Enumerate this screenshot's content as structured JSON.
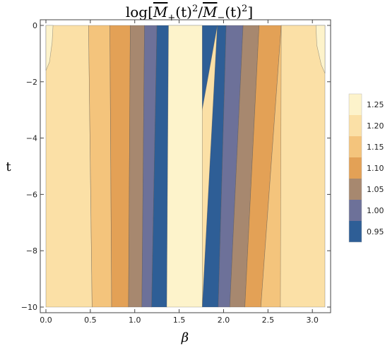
{
  "chart_data": {
    "type": "heatmap",
    "title": {
      "prefix": "log[",
      "m1": "M",
      "sub1": "+",
      "mid1": "(t)",
      "sup1": "2",
      "slash": "/",
      "m2": "M",
      "sub2": "−",
      "mid2": "(t)",
      "sup2": "2",
      "suffix": "]"
    },
    "xlabel": "β",
    "ylabel": "t",
    "xlim": [
      0,
      3.1416
    ],
    "ylim": [
      -10,
      0
    ],
    "x_ticks": [
      0.0,
      0.5,
      1.0,
      1.5,
      2.0,
      2.5,
      3.0
    ],
    "x_tick_labels": [
      "0.0",
      "0.5",
      "1.0",
      "1.5",
      "2.0",
      "2.5",
      "3.0"
    ],
    "y_ticks": [
      0,
      -2,
      -4,
      -6,
      -8,
      -10
    ],
    "y_tick_labels": [
      "0",
      "−2",
      "−4",
      "−6",
      "−8",
      "−10"
    ],
    "levels": [
      {
        "label": "1.25",
        "color": "#fdf3cb"
      },
      {
        "label": "1.20",
        "color": "#fbe0a6"
      },
      {
        "label": "1.15",
        "color": "#f4c47c"
      },
      {
        "label": "1.10",
        "color": "#e3a156"
      },
      {
        "label": "1.05",
        "color": "#a7886f"
      },
      {
        "label": "1.00",
        "color": "#6d7199"
      },
      {
        "label": "0.95",
        "color": "#2e5e96"
      }
    ],
    "bands": [
      {
        "level": 1,
        "x_top": [
          0.0,
          0.48
        ],
        "x_bottom": [
          0.0,
          0.52
        ]
      },
      {
        "level": 2,
        "x_top": [
          0.48,
          0.72
        ],
        "x_bottom": [
          0.52,
          0.74
        ]
      },
      {
        "level": 3,
        "x_top": [
          0.72,
          0.95
        ],
        "x_bottom": [
          0.74,
          0.93
        ]
      },
      {
        "level": 4,
        "x_top": [
          0.95,
          1.11
        ],
        "x_bottom": [
          0.93,
          1.08
        ]
      },
      {
        "level": 5,
        "x_top": [
          1.11,
          1.25
        ],
        "x_bottom": [
          1.08,
          1.19
        ]
      },
      {
        "level": 6,
        "x_top": [
          1.25,
          1.93
        ],
        "x_bottom": [
          1.19,
          1.36
        ]
      },
      {
        "level": 6,
        "x_top": [
          1.93,
          2.03
        ],
        "x_bottom": [
          1.76,
          1.94
        ]
      },
      {
        "level": 5,
        "x_top": [
          2.03,
          2.22
        ],
        "x_bottom": [
          1.94,
          2.07
        ]
      },
      {
        "level": 4,
        "x_top": [
          2.22,
          2.4
        ],
        "x_bottom": [
          2.07,
          2.24
        ]
      },
      {
        "level": 3,
        "x_top": [
          2.4,
          2.65
        ],
        "x_bottom": [
          2.24,
          2.42
        ]
      },
      {
        "level": 2,
        "x_top": [
          2.65,
          3.1416
        ],
        "x_bottom": [
          2.42,
          2.64
        ]
      },
      {
        "level": 1,
        "x_top": [
          2.65,
          3.1416
        ],
        "x_bottom": [
          2.64,
          3.1416
        ]
      },
      {
        "level": 0,
        "x_top": [
          1.38,
          1.76
        ],
        "x_bottom": [
          1.36,
          1.76
        ]
      }
    ],
    "edge_regions": [
      {
        "level": 0,
        "points": [
          [
            0.0,
            0
          ],
          [
            0.08,
            0
          ],
          [
            0.07,
            -0.6
          ],
          [
            0.04,
            -1.3
          ],
          [
            0.0,
            -1.6
          ]
        ]
      },
      {
        "level": 0,
        "points": [
          [
            3.1416,
            0
          ],
          [
            3.04,
            0
          ],
          [
            3.05,
            -0.7
          ],
          [
            3.1,
            -1.4
          ],
          [
            3.1416,
            -1.7
          ]
        ]
      }
    ],
    "grid": false,
    "legend_position": "right"
  }
}
